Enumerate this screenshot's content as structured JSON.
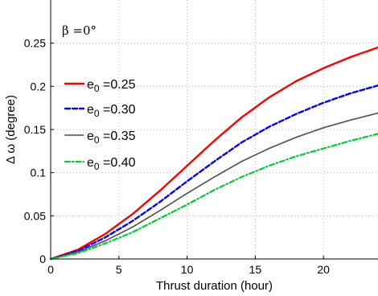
{
  "chart_data": {
    "type": "line",
    "title": "",
    "xlabel": "Thrust duration (hour)",
    "ylabel": "Δ ω (degree)",
    "xlim": [
      0,
      24
    ],
    "ylim": [
      0,
      0.3
    ],
    "xticks": [
      0,
      5,
      10,
      15,
      20
    ],
    "xtick_labels": [
      "0",
      "5",
      "10",
      "15",
      "20"
    ],
    "yticks": [
      0,
      0.05,
      0.1,
      0.15,
      0.2,
      0.25
    ],
    "ytick_labels": [
      "0",
      "0.05",
      "0.1",
      "0.15",
      "0.2",
      "0.25"
    ],
    "grid": true,
    "legend_position": "left",
    "annotation": {
      "text": "β =0°",
      "location": "top-left"
    },
    "x": [
      0,
      2,
      4,
      6,
      8,
      10,
      12,
      14,
      16,
      18,
      20,
      22,
      24
    ],
    "series": [
      {
        "name": "e0 =0.25",
        "legend_main": "e",
        "legend_sub": "0",
        "legend_value": " =0.25",
        "values": [
          0,
          0.0108,
          0.029,
          0.052,
          0.079,
          0.108,
          0.137,
          0.164,
          0.187,
          0.206,
          0.221,
          0.234,
          0.245
        ],
        "color": "#ff0000",
        "line_style": "solid"
      },
      {
        "name": "e0 =0.30",
        "legend_main": "e",
        "legend_sub": "0",
        "legend_value": " =0.30",
        "values": [
          0,
          0.0093,
          0.025,
          0.044,
          0.066,
          0.09,
          0.113,
          0.135,
          0.153,
          0.168,
          0.181,
          0.192,
          0.201
        ],
        "color": "#0000ff",
        "line_style": "dashed"
      },
      {
        "name": "e0 =0.35",
        "legend_main": "e",
        "legend_sub": "0",
        "legend_value": " =0.35",
        "values": [
          0,
          0.0081,
          0.021,
          0.037,
          0.056,
          0.076,
          0.095,
          0.113,
          0.128,
          0.141,
          0.152,
          0.161,
          0.169
        ],
        "color": "#555555",
        "line_style": "dotted"
      },
      {
        "name": "e0 =0.40",
        "legend_main": "e",
        "legend_sub": "0",
        "legend_value": " =0.40",
        "values": [
          0,
          0.0067,
          0.018,
          0.031,
          0.047,
          0.063,
          0.08,
          0.095,
          0.108,
          0.119,
          0.128,
          0.137,
          0.145
        ],
        "color": "#00cc33",
        "line_style": "dashdot"
      }
    ]
  }
}
